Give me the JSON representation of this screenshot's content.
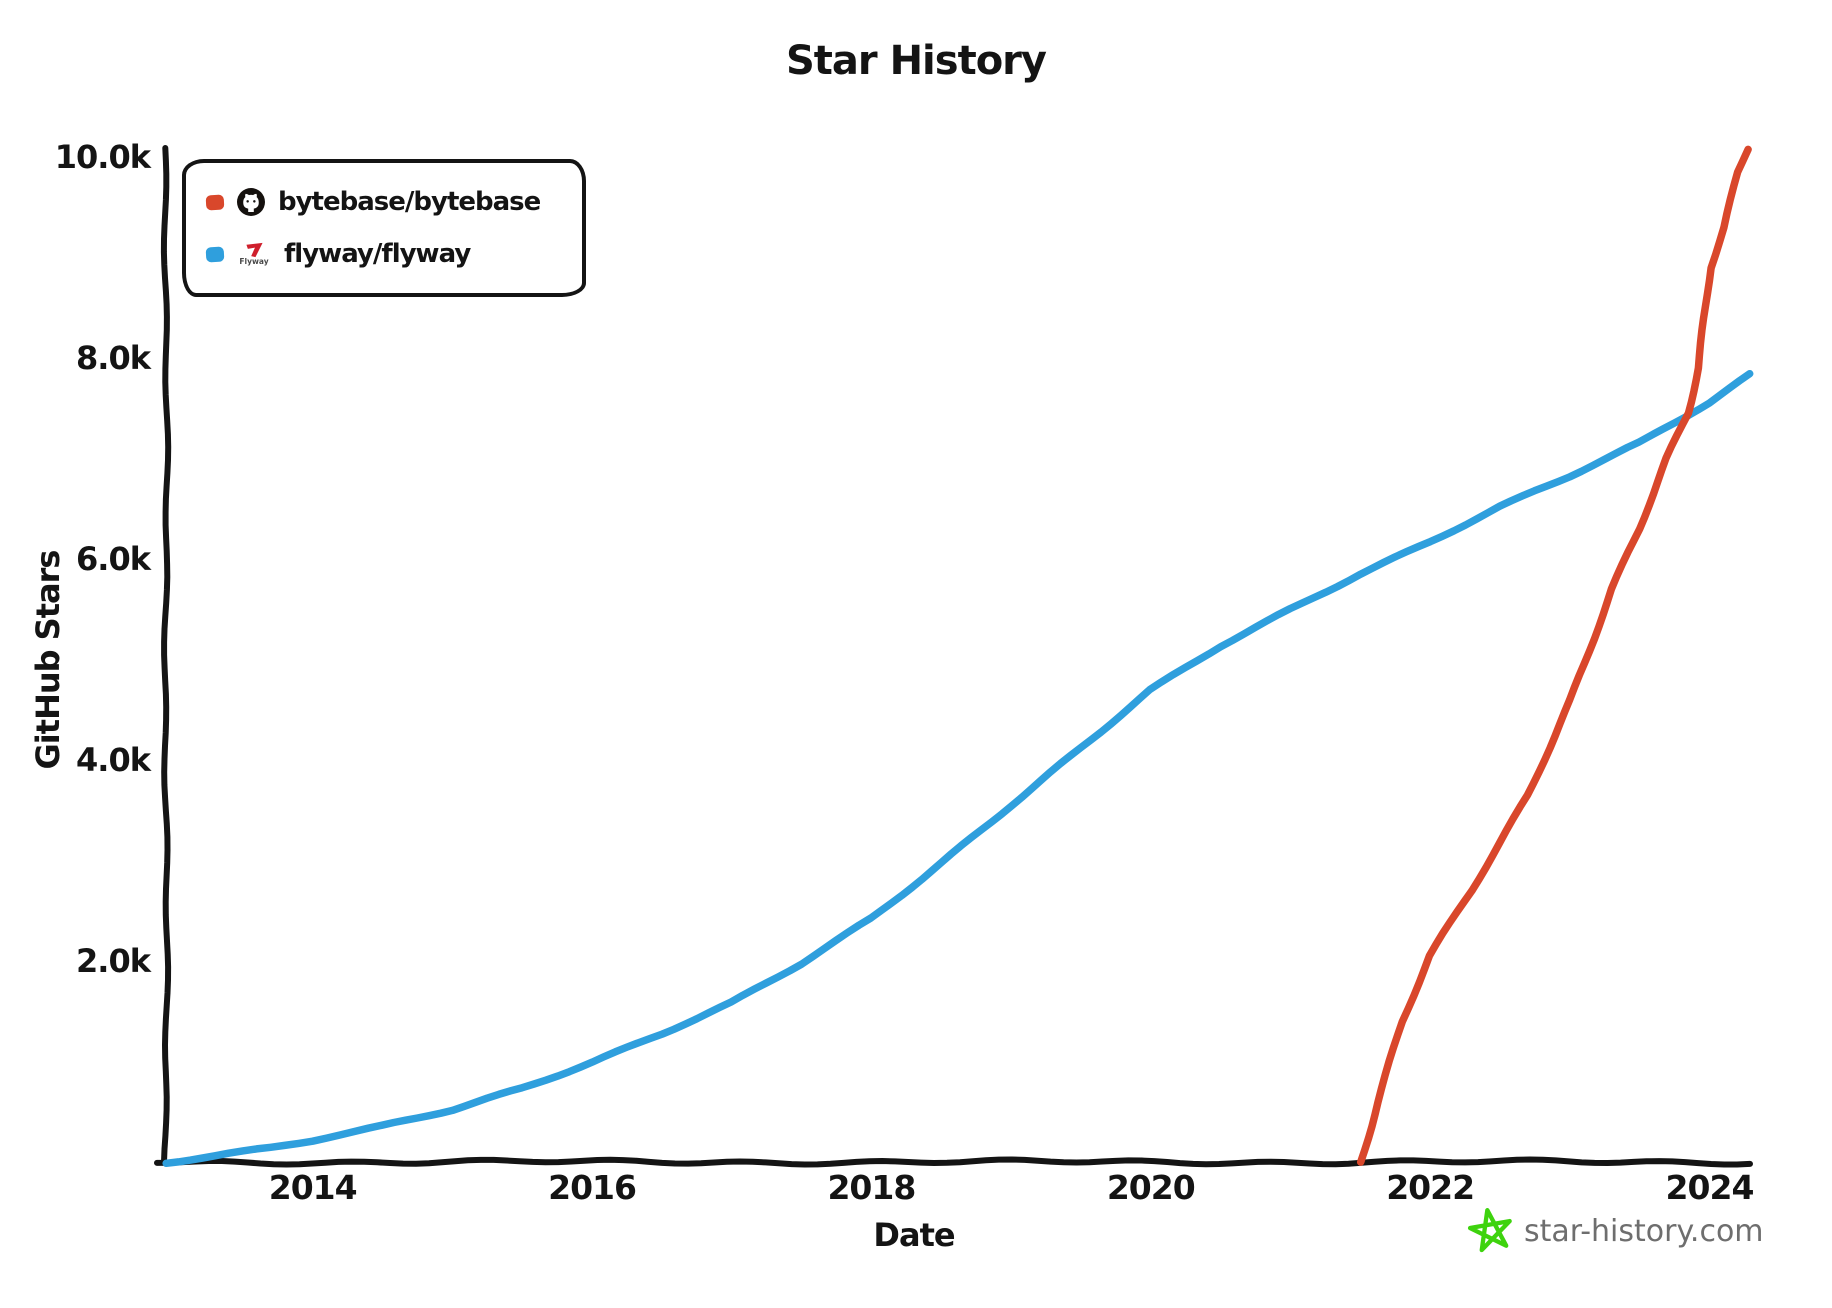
{
  "title": "Star History",
  "legend": {
    "flyway_icon_text": "Flyway"
  },
  "footer": {
    "brand": "star-history.com",
    "star_color": "#3ed30e"
  },
  "chart_data": {
    "type": "line",
    "title": "Star History",
    "xlabel": "Date",
    "ylabel": "GitHub Stars",
    "xlim": [
      2012.95,
      2024.29
    ],
    "ylim": [
      0,
      10090
    ],
    "grid": false,
    "legend_position": "top-left",
    "axis_color": "#141414",
    "x_ticks": [
      {
        "value": 2014,
        "label": "2014"
      },
      {
        "value": 2016,
        "label": "2016"
      },
      {
        "value": 2018,
        "label": "2018"
      },
      {
        "value": 2020,
        "label": "2020"
      },
      {
        "value": 2022,
        "label": "2022"
      },
      {
        "value": 2024,
        "label": "2024"
      }
    ],
    "y_ticks": [
      {
        "value": 2000,
        "label": "2.0k"
      },
      {
        "value": 4000,
        "label": "4.0k"
      },
      {
        "value": 6000,
        "label": "6.0k"
      },
      {
        "value": 8000,
        "label": "8.0k"
      },
      {
        "value": 10000,
        "label": "10.0k"
      }
    ],
    "series": [
      {
        "name": "bytebase/bytebase",
        "color": "#d9472b",
        "points": [
          [
            2021.5,
            0
          ],
          [
            2021.62,
            600
          ],
          [
            2021.8,
            1400
          ],
          [
            2022.0,
            2050
          ],
          [
            2022.3,
            2700
          ],
          [
            2022.5,
            3170
          ],
          [
            2022.7,
            3650
          ],
          [
            2023.0,
            4600
          ],
          [
            2023.3,
            5700
          ],
          [
            2023.5,
            6300
          ],
          [
            2023.7,
            7000
          ],
          [
            2023.85,
            7450
          ],
          [
            2023.92,
            7900
          ],
          [
            2024.0,
            8900
          ],
          [
            2024.1,
            9300
          ],
          [
            2024.2,
            9850
          ],
          [
            2024.27,
            10080
          ]
        ]
      },
      {
        "name": "flyway/flyway",
        "color": "#2f9fdd",
        "points": [
          [
            2012.95,
            0
          ],
          [
            2013.3,
            60
          ],
          [
            2013.7,
            140
          ],
          [
            2014.0,
            210
          ],
          [
            2014.5,
            350
          ],
          [
            2015.0,
            520
          ],
          [
            2015.5,
            740
          ],
          [
            2016.0,
            1000
          ],
          [
            2016.5,
            1280
          ],
          [
            2017.0,
            1580
          ],
          [
            2017.5,
            1970
          ],
          [
            2018.0,
            2420
          ],
          [
            2018.5,
            2980
          ],
          [
            2019.0,
            3560
          ],
          [
            2019.5,
            4120
          ],
          [
            2020.0,
            4690
          ],
          [
            2020.5,
            5130
          ],
          [
            2021.0,
            5500
          ],
          [
            2021.5,
            5860
          ],
          [
            2022.0,
            6180
          ],
          [
            2022.5,
            6520
          ],
          [
            2023.0,
            6820
          ],
          [
            2023.5,
            7150
          ],
          [
            2024.0,
            7560
          ],
          [
            2024.29,
            7840
          ]
        ]
      }
    ]
  }
}
